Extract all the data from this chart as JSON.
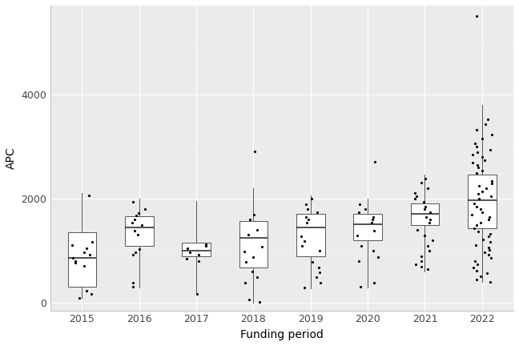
{
  "title": "",
  "xlabel": "Funding period",
  "ylabel": "APC",
  "years": [
    2015,
    2016,
    2017,
    2018,
    2019,
    2020,
    2021,
    2022
  ],
  "boxes": {
    "2015": {
      "q1": 300,
      "median": 860,
      "q3": 1350,
      "whisker_low": 90,
      "whisker_high": 2100,
      "jitter_points": [
        90,
        160,
        230,
        700,
        760,
        800,
        860,
        920,
        970,
        1050,
        1100,
        1170,
        2050
      ]
    },
    "2016": {
      "q1": 1090,
      "median": 1440,
      "q3": 1660,
      "whisker_low": 290,
      "whisker_high": 2000,
      "jitter_points": [
        300,
        380,
        920,
        970,
        1030,
        1300,
        1380,
        1490,
        1540,
        1590,
        1670,
        1720,
        1800,
        1940
      ]
    },
    "2017": {
      "q1": 890,
      "median": 1000,
      "q3": 1150,
      "whisker_low": 160,
      "whisker_high": 1950,
      "jitter_points": [
        170,
        800,
        850,
        920,
        970,
        1050,
        1090,
        1120
      ]
    },
    "2018": {
      "q1": 680,
      "median": 1250,
      "q3": 1560,
      "whisker_low": 0,
      "whisker_high": 2200,
      "jitter_points": [
        10,
        60,
        380,
        490,
        590,
        780,
        880,
        980,
        1080,
        1300,
        1390,
        1590,
        1690,
        2900
      ]
    },
    "2019": {
      "q1": 890,
      "median": 1450,
      "q3": 1700,
      "whisker_low": 280,
      "whisker_high": 2050,
      "jitter_points": [
        290,
        380,
        490,
        580,
        680,
        780,
        990,
        1090,
        1180,
        1280,
        1540,
        1590,
        1640,
        1740,
        1790,
        1890,
        1990
      ]
    },
    "2020": {
      "q1": 1200,
      "median": 1500,
      "q3": 1700,
      "whisker_low": 290,
      "whisker_high": 2000,
      "jitter_points": [
        300,
        380,
        790,
        880,
        990,
        1090,
        1290,
        1380,
        1540,
        1590,
        1640,
        1740,
        1790,
        1890,
        2700
      ]
    },
    "2021": {
      "q1": 1490,
      "median": 1700,
      "q3": 1900,
      "whisker_low": 590,
      "whisker_high": 2450,
      "jitter_points": [
        640,
        690,
        740,
        790,
        890,
        990,
        1090,
        1190,
        1290,
        1390,
        1540,
        1590,
        1640,
        1740,
        1790,
        1840,
        1940,
        1990,
        2040,
        2100,
        2200,
        2300,
        2380
      ]
    },
    "2022": {
      "q1": 1430,
      "median": 1960,
      "q3": 2450,
      "whisker_low": 390,
      "whisker_high": 3800,
      "jitter_points": [
        400,
        450,
        500,
        560,
        620,
        680,
        740,
        800,
        860,
        920,
        960,
        1010,
        1060,
        1110,
        1160,
        1210,
        1270,
        1320,
        1370,
        1420,
        1490,
        1540,
        1590,
        1640,
        1690,
        1740,
        1790,
        1840,
        1900,
        1990,
        2040,
        2090,
        2140,
        2190,
        2240,
        2290,
        2340,
        2490,
        2540,
        2590,
        2640,
        2690,
        2740,
        2790,
        2840,
        2890,
        2940,
        2990,
        3050,
        3150,
        3230,
        3320,
        3420,
        3510,
        5500
      ]
    }
  },
  "ylim": [
    -150,
    5700
  ],
  "yticks": [
    0,
    2000,
    4000
  ],
  "ytick_labels": [
    "0",
    "2000",
    "4000"
  ],
  "box_width": 0.5,
  "box_color": "white",
  "box_edge_color": "#555555",
  "median_color": "#222222",
  "whisker_color": "#555555",
  "flier_color": "black",
  "flier_size": 3,
  "background_color": "white",
  "panel_background": "#ebebeb",
  "grid_color": "#ffffff",
  "font_size_axis": 9,
  "font_size_label": 10
}
